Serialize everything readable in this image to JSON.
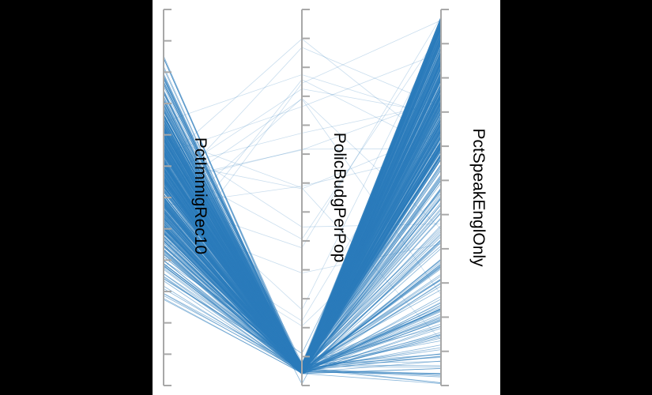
{
  "chart_data": {
    "type": "parallel-coordinates",
    "title": "",
    "axes": [
      {
        "name": "PctImmigRec10"
      },
      {
        "name": "PolicBudgPerPop"
      },
      {
        "name": "PctSpeakEnglOnly"
      }
    ],
    "line_color": "#2b7bbb",
    "axis_color": "#a8a8a8",
    "grid": false,
    "line_count_estimate": 600,
    "value_range": [
      0,
      1
    ],
    "value_distribution": {
      "PctImmigRec10": "spread across full range, concentrated in upper-middle",
      "PolicBudgPerPop": "nearly all lines near the low end; a few outliers across the range",
      "PctSpeakEnglOnly": "concentrated toward the high end, with a tail to the low end"
    }
  }
}
